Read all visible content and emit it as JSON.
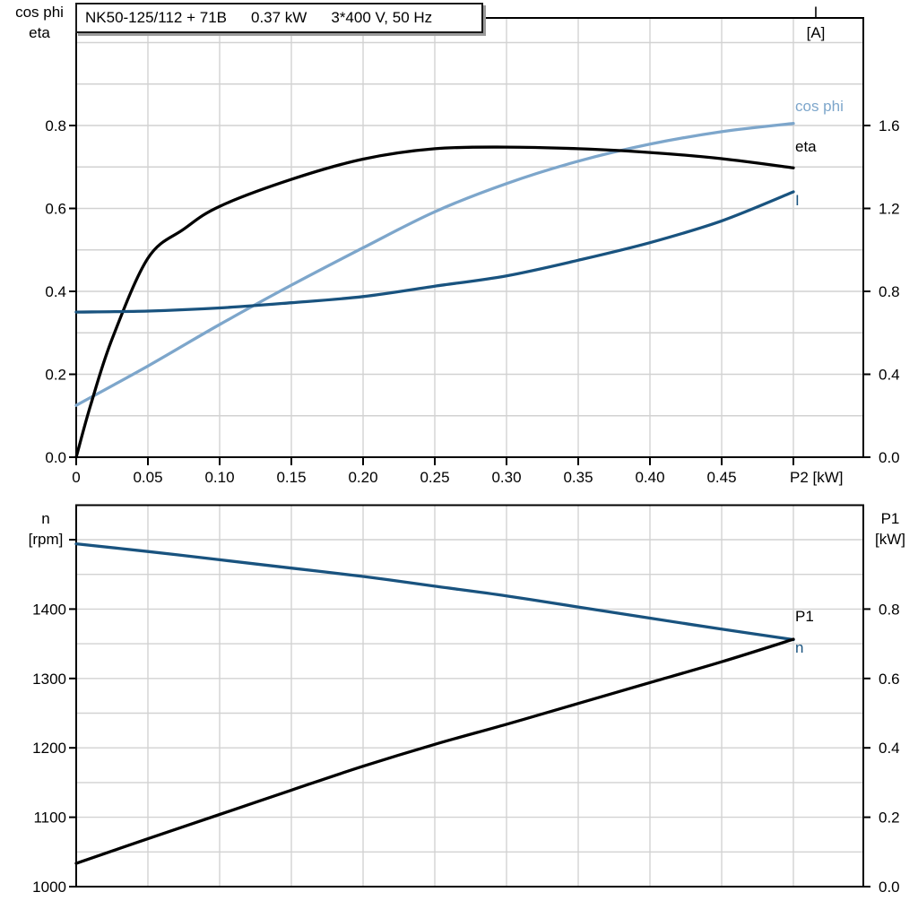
{
  "title": {
    "parts": [
      "NK50-125/112 + 71B",
      "0.37 kW",
      "3*400 V, 50 Hz"
    ]
  },
  "colors": {
    "light_blue": "#7da6cb",
    "dark_blue": "#19537f",
    "black": "#000000",
    "grid": "#d2d2d2",
    "frame": "#000000",
    "title_shadow": "#9a9a9a"
  },
  "top_chart": {
    "left_header": [
      "cos phi",
      "eta"
    ],
    "right_header": [
      "I",
      "[A]"
    ],
    "x_tick_labels": [
      "0",
      "0.05",
      "0.10",
      "0.15",
      "0.20",
      "0.25",
      "0.30",
      "0.35",
      "0.40",
      "0.45",
      "P2 [kW]"
    ],
    "x_tick_values": [
      0,
      0.05,
      0.1,
      0.15,
      0.2,
      0.25,
      0.3,
      0.35,
      0.4,
      0.45,
      0.5
    ],
    "left_tick_labels": [
      "0.0",
      "0.2",
      "0.4",
      "0.6",
      "0.8"
    ],
    "left_tick_values": [
      0,
      0.2,
      0.4,
      0.6,
      0.8
    ],
    "right_tick_labels": [
      "0.0",
      "0.4",
      "0.8",
      "1.2",
      "1.6"
    ],
    "right_tick_values": [
      0,
      0.4,
      0.8,
      1.2,
      1.6
    ],
    "curve_labels": [
      {
        "text": "cos phi",
        "color_key": "light_blue"
      },
      {
        "text": "eta",
        "color_key": "black"
      },
      {
        "text": "I",
        "color_key": "dark_blue"
      }
    ]
  },
  "bottom_chart": {
    "left_header": [
      "n",
      "[rpm]"
    ],
    "right_header": [
      "P1",
      "[kW]"
    ],
    "left_tick_labels": [
      "1000",
      "1100",
      "1200",
      "1300",
      "1400",
      ""
    ],
    "left_tick_values": [
      1000,
      1100,
      1200,
      1300,
      1400,
      1500
    ],
    "right_tick_labels": [
      "0.0",
      "0.2",
      "0.4",
      "0.6",
      "0.8"
    ],
    "right_tick_values": [
      0,
      0.2,
      0.4,
      0.6,
      0.8
    ],
    "curve_labels": [
      {
        "text": "P1",
        "color_key": "black"
      },
      {
        "text": "n",
        "color_key": "dark_blue"
      }
    ]
  },
  "chart_data": [
    {
      "type": "line",
      "panel": "top",
      "title": "NK50-125/112 + 71B 0.37 kW 3*400 V, 50 Hz",
      "xlabel": "P2 [kW]",
      "x": [
        0,
        0.05,
        0.1,
        0.15,
        0.2,
        0.25,
        0.3,
        0.35,
        0.4,
        0.45,
        0.5
      ],
      "x_axis": {
        "min": 0,
        "max": 0.549,
        "gridstep": 0.05
      },
      "left_axis": {
        "label": "cos phi / eta",
        "min": 0,
        "max": 1.06,
        "ticks": [
          0,
          0.2,
          0.4,
          0.6,
          0.8
        ],
        "gridstep": 0.1
      },
      "right_axis": {
        "label": "I [A]",
        "min": 0,
        "max": 2.12,
        "ticks": [
          0,
          0.4,
          0.8,
          1.2,
          1.6
        ]
      },
      "series": [
        {
          "name": "cos phi",
          "axis": "left",
          "color": "#7da6cb",
          "values": [
            0.125,
            0.22,
            0.32,
            0.415,
            0.505,
            0.592,
            0.66,
            0.714,
            0.755,
            0.785,
            0.805
          ]
        },
        {
          "name": "eta",
          "axis": "left",
          "color": "#000000",
          "x": [
            0,
            0.01,
            0.025,
            0.05,
            0.075,
            0.1,
            0.15,
            0.2,
            0.25,
            0.3,
            0.35,
            0.4,
            0.45,
            0.5
          ],
          "values": [
            0,
            0.125,
            0.285,
            0.48,
            0.55,
            0.605,
            0.67,
            0.719,
            0.744,
            0.748,
            0.744,
            0.735,
            0.72,
            0.698
          ]
        },
        {
          "name": "I",
          "axis": "right",
          "color": "#19537f",
          "values": [
            0.7,
            0.705,
            0.72,
            0.745,
            0.775,
            0.825,
            0.875,
            0.95,
            1.035,
            1.14,
            1.28
          ]
        }
      ]
    },
    {
      "type": "line",
      "panel": "bottom",
      "x": [
        0,
        0.05,
        0.1,
        0.15,
        0.2,
        0.25,
        0.3,
        0.35,
        0.4,
        0.45,
        0.5
      ],
      "x_axis": {
        "min": 0,
        "max": 0.549,
        "gridstep": 0.05
      },
      "left_axis": {
        "label": "n [rpm]",
        "min": 1000,
        "max": 1550,
        "ticks": [
          1000,
          1100,
          1200,
          1300,
          1400,
          1500
        ],
        "gridstep": 50
      },
      "right_axis": {
        "label": "P1 [kW]",
        "min": 0,
        "max": 1.1,
        "ticks": [
          0,
          0.2,
          0.4,
          0.6,
          0.8
        ]
      },
      "series": [
        {
          "name": "n",
          "axis": "left",
          "color": "#19537f",
          "values": [
            1494,
            1483,
            1471,
            1459,
            1447,
            1433,
            1419,
            1403,
            1387,
            1371,
            1356
          ]
        },
        {
          "name": "P1",
          "axis": "right",
          "color": "#000000",
          "values": [
            0.067,
            0.138,
            0.208,
            0.278,
            0.347,
            0.41,
            0.468,
            0.528,
            0.588,
            0.648,
            0.713
          ]
        }
      ]
    }
  ]
}
